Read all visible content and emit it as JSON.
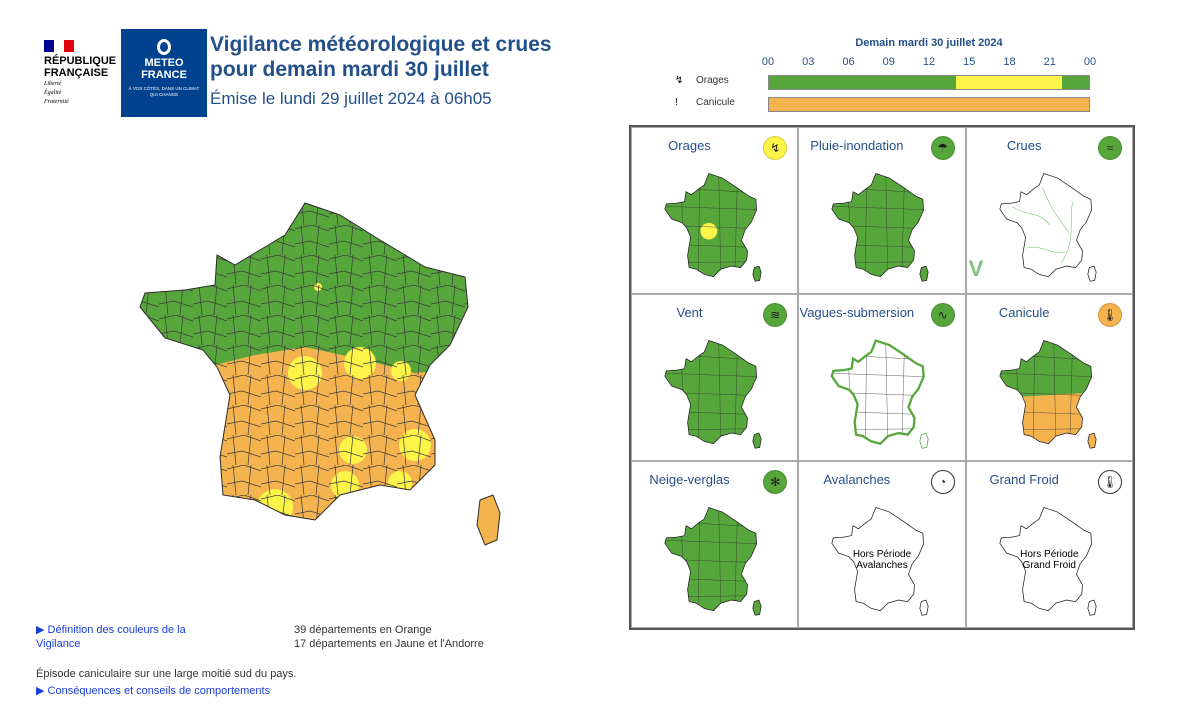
{
  "header": {
    "republique_line1": "RÉPUBLIQUE",
    "republique_line2": "FRANÇAISE",
    "motto_1": "Liberté",
    "motto_2": "Égalité",
    "motto_3": "Fraternité",
    "mf_line1": "METEO",
    "mf_line2": "FRANCE",
    "mf_tagline": "À VOS CÔTÉS, DANS UN CLIMAT QUI CHANGE",
    "title_line1": "Vigilance météorologique et crues",
    "title_line2": "pour demain mardi 30 juillet",
    "issued": "Émise le lundi 29 juillet 2024 à 06h05"
  },
  "timeline": {
    "title": "Demain mardi 30 juillet 2024",
    "ticks": [
      "00",
      "03",
      "06",
      "09",
      "12",
      "15",
      "18",
      "21",
      "00"
    ],
    "rows": [
      {
        "label": "Orages",
        "icon": "lightning-icon",
        "segments": [
          {
            "color": "#56a63c",
            "from_hour": 0,
            "to_hour": 14
          },
          {
            "color": "#fdf44a",
            "from_hour": 14,
            "to_hour": 22
          },
          {
            "color": "#56a63c",
            "from_hour": 22,
            "to_hour": 24
          }
        ]
      },
      {
        "label": "Canicule",
        "icon": "thermometer-icon",
        "segments": [
          {
            "color": "#f4b34e",
            "from_hour": 0,
            "to_hour": 24
          }
        ]
      }
    ]
  },
  "colors": {
    "green": "#56a63c",
    "yellow": "#fdf44a",
    "orange": "#f4b34e",
    "white": "#ffffff",
    "title_blue": "#23508a"
  },
  "cells": [
    {
      "name": "Orages",
      "badge_color": "#fdf44a",
      "icon": "lightning-icon",
      "map": "green-yellow-center"
    },
    {
      "name": "Pluie-inondation",
      "badge_color": "#56a63c",
      "icon": "rain-icon",
      "map": "green"
    },
    {
      "name": "Crues",
      "badge_color": "#56a63c",
      "icon": "waves-icon",
      "map": "rivers"
    },
    {
      "name": "Vent",
      "badge_color": "#56a63c",
      "icon": "wind-icon",
      "map": "green"
    },
    {
      "name": "Vagues-submersion",
      "badge_color": "#56a63c",
      "icon": "wave-icon",
      "map": "white-green-coast"
    },
    {
      "name": "Canicule",
      "badge_color": "#f4b34e",
      "icon": "thermometer-icon",
      "map": "green-orange-south"
    },
    {
      "name": "Neige-verglas",
      "badge_color": "#56a63c",
      "icon": "snowflake-icon",
      "map": "green"
    },
    {
      "name": "Avalanches",
      "badge_color": "#ffffff",
      "icon": "avalanche-icon",
      "map": "outline",
      "note_line1": "Hors Période",
      "note_line2": "Avalanches"
    },
    {
      "name": "Grand Froid",
      "badge_color": "#ffffff",
      "icon": "thermometer-icon",
      "map": "outline",
      "note_line1": "Hors Période",
      "note_line2": "Grand Froid"
    }
  ],
  "footer": {
    "definition_link_line1": "▶ Définition des couleurs de la",
    "definition_link_line2": "Vigilance",
    "count_orange": "39 départements en Orange",
    "count_yellow": "17 départements en Jaune et l'Andorre",
    "episode": "Épisode caniculaire sur une large moitié sud du pays.",
    "consequences_link": "▶ Conséquences et conseils de comportements"
  }
}
